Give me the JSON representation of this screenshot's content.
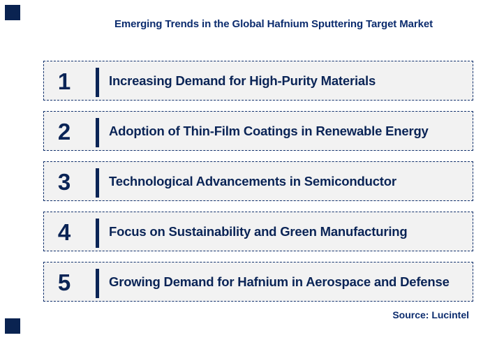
{
  "page": {
    "title": "Emerging Trends in the Global Hafnium Sputtering Target Market",
    "source": "Source: Lucintel"
  },
  "colors": {
    "navy_text": "#0a2456",
    "title_navy": "#0c2c6e",
    "corner_square": "#0a2351",
    "row_background": "#f2f2f2",
    "row_border": "#10306c",
    "page_background": "#ffffff"
  },
  "trends": [
    {
      "number": "1",
      "label": "Increasing Demand for High-Purity Materials"
    },
    {
      "number": "2",
      "label": "Adoption of Thin-Film Coatings in Renewable Energy"
    },
    {
      "number": "3",
      "label": "Technological Advancements in Semiconductor"
    },
    {
      "number": "4",
      "label": "Focus on Sustainability and Green Manufacturing"
    },
    {
      "number": "5",
      "label": "Growing Demand for Hafnium in Aerospace and Defense"
    }
  ]
}
